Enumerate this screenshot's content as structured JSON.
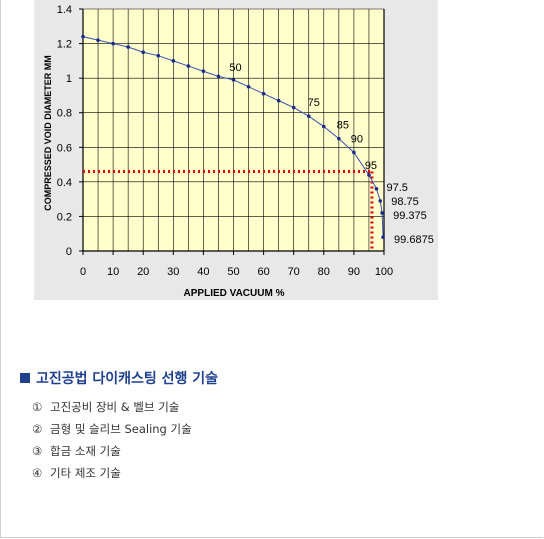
{
  "chart_data": {
    "type": "line",
    "xlabel": "APPLIED VACUUM %",
    "ylabel": "COMPRESSED VOID DIAMETER MM",
    "xlim": [
      0,
      100
    ],
    "ylim": [
      0,
      1.4
    ],
    "xticks": [
      "0",
      "10",
      "20",
      "30",
      "40",
      "50",
      "60",
      "70",
      "80",
      "90",
      "100"
    ],
    "yticks": [
      "0",
      "0.2",
      "0.4",
      "0.6",
      "0.8",
      "1",
      "1.2",
      "1.4"
    ],
    "grid": true,
    "series": [
      {
        "x": [
          0,
          5,
          10,
          15,
          20,
          25,
          30,
          35,
          40,
          45,
          50,
          55,
          60,
          65,
          70,
          75,
          80,
          85,
          90,
          95,
          97.5,
          98.75,
          99.375,
          99.6875
        ],
        "y": [
          1.24,
          1.22,
          1.2,
          1.18,
          1.15,
          1.13,
          1.1,
          1.07,
          1.04,
          1.01,
          0.99,
          0.95,
          0.91,
          0.87,
          0.83,
          0.78,
          0.72,
          0.65,
          0.57,
          0.44,
          0.36,
          0.29,
          0.22,
          0.08
        ]
      }
    ],
    "point_labels": [
      {
        "x": 50,
        "y": 0.99,
        "text": "50"
      },
      {
        "x": 75,
        "y": 0.78,
        "text": "75"
      },
      {
        "x": 85,
        "y": 0.65,
        "text": "85"
      },
      {
        "x": 90,
        "y": 0.57,
        "text": "90"
      },
      {
        "x": 95,
        "y": 0.44,
        "text": "95"
      },
      {
        "x": 97.5,
        "y": 0.36,
        "text": "97.5"
      },
      {
        "x": 98.75,
        "y": 0.29,
        "text": "98.75"
      },
      {
        "x": 99.375,
        "y": 0.22,
        "text": "99.375"
      },
      {
        "x": 99.6875,
        "y": 0.08,
        "text": "99.6875"
      }
    ],
    "reference_lines": {
      "x": 96,
      "y": 0.46,
      "style": "dotted",
      "color": "#e00000"
    },
    "colors": {
      "plot_bg": "#ffffcc",
      "outer_bg": "#e8e8e8",
      "line": "#3a4fb5",
      "grid": "#000000"
    }
  },
  "section": {
    "title": "고진공법 다이캐스팅 선행 기술",
    "items": [
      {
        "num": "①",
        "text": "고진공비 장비 & 벨브 기술"
      },
      {
        "num": "②",
        "text": "금형 및 슬리브 Sealing 기술"
      },
      {
        "num": "③",
        "text": "합금 소재 기술"
      },
      {
        "num": "④",
        "text": "기타 제조 기술"
      }
    ]
  }
}
